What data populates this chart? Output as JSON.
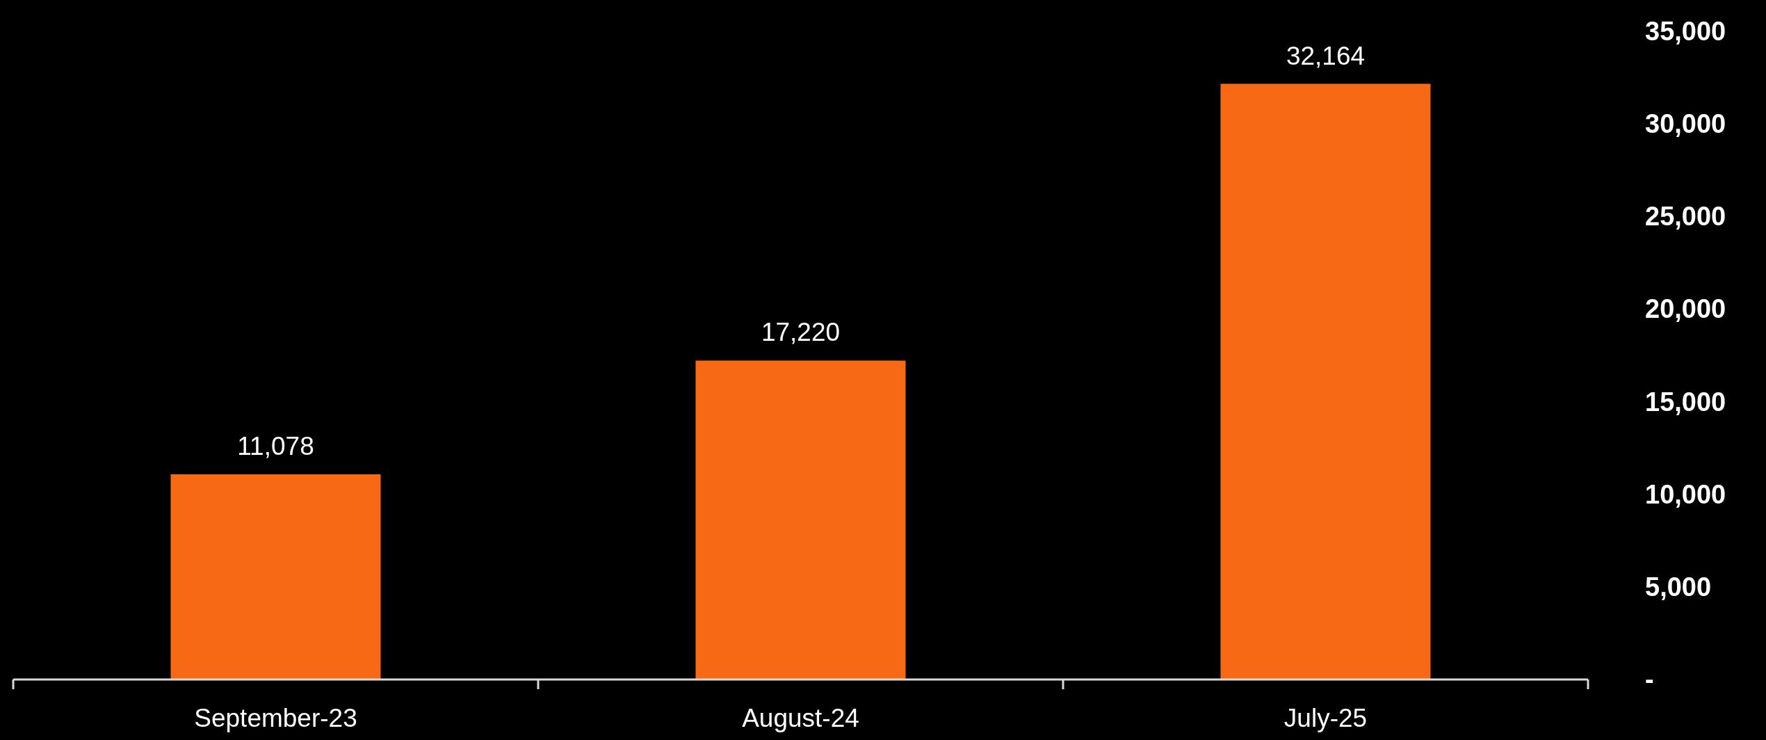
{
  "chart_data": {
    "type": "bar",
    "categories": [
      "September-23",
      "August-24",
      "July-25"
    ],
    "values": [
      11078,
      17220,
      32164
    ],
    "color": "#f76915",
    "ylim": [
      0,
      35000
    ],
    "yticks": [
      {
        "value": 0,
        "label": "-"
      },
      {
        "value": 5000,
        "label": "5,000"
      },
      {
        "value": 10000,
        "label": "10,000"
      },
      {
        "value": 15000,
        "label": "15,000"
      },
      {
        "value": 20000,
        "label": "20,000"
      },
      {
        "value": 25000,
        "label": "25,000"
      },
      {
        "value": 30000,
        "label": "30,000"
      },
      {
        "value": 35000,
        "label": "35,000"
      }
    ],
    "value_labels": [
      "11,078",
      "17,220",
      "32,164"
    ],
    "grid": false,
    "legend": false
  }
}
